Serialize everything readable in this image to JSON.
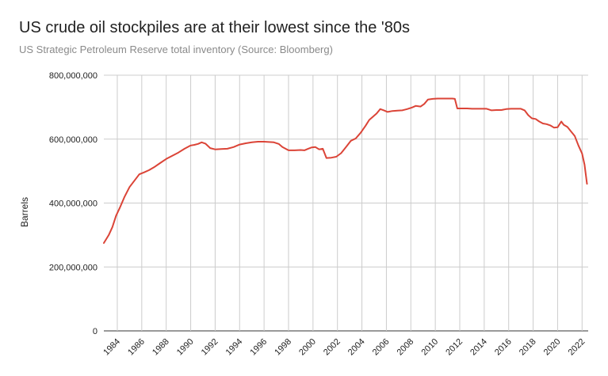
{
  "title": "US crude oil stockpiles are at their lowest since the '80s",
  "subtitle": "US Strategic Petroleum Reserve total inventory (Source: Bloomberg)",
  "chart_data": {
    "type": "line",
    "title": "US crude oil stockpiles are at their lowest since the '80s",
    "subtitle": "US Strategic Petroleum Reserve total inventory (Source: Bloomberg)",
    "xlabel": "",
    "ylabel": "Barrels",
    "xlim": [
      1982.9,
      2022.5
    ],
    "ylim": [
      0,
      800000000
    ],
    "yticks": [
      0,
      200000000,
      400000000,
      600000000,
      800000000
    ],
    "ytick_labels": [
      "0",
      "200,000,000",
      "400,000,000",
      "600,000,000",
      "800,000,000"
    ],
    "xticks": [
      1984,
      1986,
      1988,
      1990,
      1992,
      1994,
      1996,
      1998,
      2000,
      2002,
      2004,
      2006,
      2008,
      2010,
      2012,
      2014,
      2016,
      2018,
      2020,
      2022
    ],
    "xtick_labels": [
      "1984",
      "1986",
      "1988",
      "1990",
      "1992",
      "1994",
      "1996",
      "1998",
      "2000",
      "2002",
      "2004",
      "2006",
      "2008",
      "2010",
      "2012",
      "2014",
      "2016",
      "2018",
      "2020",
      "2022"
    ],
    "grid": true,
    "legend": "none",
    "series": [
      {
        "color": "#db4437",
        "x": [
          1982.9,
          1983.3,
          1983.6,
          1983.9,
          1984.2,
          1984.6,
          1985.0,
          1985.4,
          1985.8,
          1986.2,
          1986.6,
          1987.0,
          1987.5,
          1988.0,
          1988.5,
          1989.0,
          1989.5,
          1990.0,
          1990.3,
          1990.6,
          1990.9,
          1991.2,
          1991.6,
          1992.0,
          1992.5,
          1993.0,
          1993.5,
          1994.0,
          1994.5,
          1995.0,
          1995.5,
          1996.0,
          1996.4,
          1996.8,
          1997.2,
          1997.5,
          1998.0,
          1998.5,
          1999.0,
          1999.3,
          1999.6,
          1999.9,
          2000.2,
          2000.5,
          2000.8,
          2001.1,
          2001.5,
          2001.9,
          2002.3,
          2002.7,
          2003.1,
          2003.5,
          2003.9,
          2004.3,
          2004.6,
          2004.9,
          2005.2,
          2005.5,
          2005.8,
          2006.1,
          2006.5,
          2006.9,
          2007.3,
          2007.7,
          2008.1,
          2008.4,
          2008.8,
          2009.1,
          2009.4,
          2009.8,
          2010.2,
          2010.6,
          2011.0,
          2011.4,
          2011.6,
          2011.8,
          2012.2,
          2012.6,
          2013.0,
          2013.4,
          2013.8,
          2014.2,
          2014.6,
          2015.0,
          2015.4,
          2015.8,
          2016.2,
          2016.6,
          2017.0,
          2017.3,
          2017.6,
          2017.9,
          2018.2,
          2018.5,
          2018.8,
          2019.1,
          2019.4,
          2019.7,
          2020.0,
          2020.3,
          2020.5,
          2020.8,
          2021.1,
          2021.4,
          2021.7,
          2022.0,
          2022.2,
          2022.4
        ],
        "y": [
          275000000,
          300000000,
          325000000,
          360000000,
          385000000,
          420000000,
          450000000,
          470000000,
          490000000,
          496000000,
          503000000,
          512000000,
          525000000,
          538000000,
          548000000,
          558000000,
          570000000,
          580000000,
          582000000,
          585000000,
          590000000,
          586000000,
          572000000,
          568000000,
          569000000,
          570000000,
          575000000,
          583000000,
          587000000,
          590000000,
          592000000,
          592000000,
          591000000,
          590000000,
          585000000,
          575000000,
          565000000,
          565000000,
          566000000,
          565000000,
          570000000,
          574000000,
          575000000,
          568000000,
          570000000,
          541000000,
          542000000,
          545000000,
          556000000,
          575000000,
          595000000,
          602000000,
          620000000,
          642000000,
          660000000,
          670000000,
          680000000,
          694000000,
          690000000,
          685000000,
          688000000,
          689000000,
          690000000,
          694000000,
          699000000,
          704000000,
          702000000,
          710000000,
          724000000,
          726000000,
          727000000,
          727000000,
          727000000,
          727000000,
          726000000,
          696000000,
          696000000,
          696000000,
          695000000,
          695000000,
          695000000,
          695000000,
          690000000,
          691000000,
          691000000,
          694000000,
          695000000,
          695000000,
          695000000,
          690000000,
          675000000,
          665000000,
          663000000,
          655000000,
          649000000,
          647000000,
          643000000,
          636000000,
          637000000,
          655000000,
          645000000,
          638000000,
          624000000,
          610000000,
          580000000,
          555000000,
          520000000,
          460000000
        ]
      }
    ]
  }
}
